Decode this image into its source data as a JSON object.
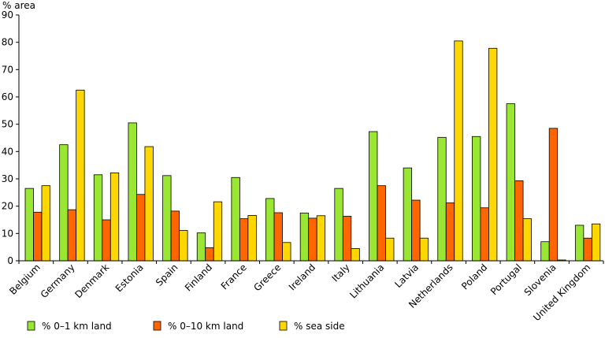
{
  "chart_data": {
    "type": "bar",
    "title": "",
    "ylabel": "% area",
    "xlabel": "",
    "ylim": [
      0,
      90
    ],
    "yticks": [
      0,
      10,
      20,
      30,
      40,
      50,
      60,
      70,
      80,
      90
    ],
    "grid": false,
    "legend_position": "bottom-left",
    "categories": [
      "Belgium",
      "Germany",
      "Denmark",
      "Estonia",
      "Spain",
      "Finland",
      "France",
      "Greece",
      "Ireland",
      "Italy",
      "Lithuania",
      "Latvia",
      "Netherlands",
      "Poland",
      "Portugal",
      "Slovenia",
      "United Kingdom"
    ],
    "series": [
      {
        "name": "% 0–1 km land",
        "color": "#99e633",
        "values": [
          26.5,
          42.5,
          31.5,
          50.5,
          31.2,
          10.2,
          30.5,
          22.8,
          17.5,
          26.5,
          47.3,
          34.0,
          45.2,
          45.5,
          57.5,
          7.0,
          13.0
        ]
      },
      {
        "name": "% 0–10 km land",
        "color": "#ff6600",
        "values": [
          17.8,
          18.7,
          15.0,
          24.3,
          18.2,
          4.8,
          15.4,
          17.6,
          15.6,
          16.3,
          27.5,
          22.2,
          21.2,
          19.4,
          29.3,
          48.5,
          8.3
        ]
      },
      {
        "name": "% sea side",
        "color": "#ffd700",
        "values": [
          27.5,
          62.5,
          32.2,
          41.8,
          11.1,
          21.6,
          16.6,
          6.7,
          16.5,
          4.5,
          8.3,
          8.3,
          80.5,
          77.8,
          15.4,
          0.3,
          13.5
        ]
      }
    ]
  }
}
